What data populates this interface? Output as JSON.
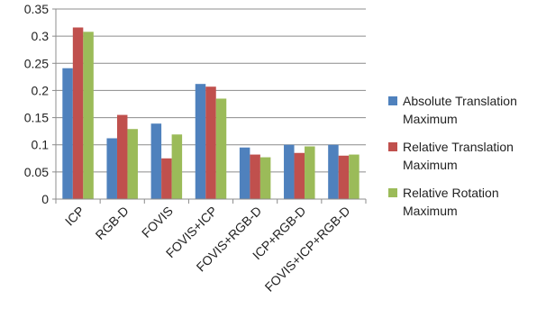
{
  "chart_data": {
    "type": "bar",
    "categories": [
      "ICP",
      "RGB-D",
      "FOVIS",
      "FOVIS+ICP",
      "FOVIS+RGB-D",
      "ICP+RGB-D",
      "FOVIS+ICP+RGB-D"
    ],
    "series": [
      {
        "name": "Absolute Translation Maximum",
        "legend_lines": [
          "Absolute Translation",
          "Maximum"
        ],
        "color": "#4f81bd",
        "values": [
          0.241,
          0.112,
          0.139,
          0.212,
          0.095,
          0.1,
          0.1
        ]
      },
      {
        "name": "Relative Translation Maximum",
        "legend_lines": [
          "Relative Translation",
          "Maximum"
        ],
        "color": "#c0504d",
        "values": [
          0.316,
          0.155,
          0.075,
          0.207,
          0.082,
          0.085,
          0.08
        ]
      },
      {
        "name": "Relative Rotation Maximum",
        "legend_lines": [
          "Relative Rotation",
          "Maximum"
        ],
        "color": "#9bbb59",
        "values": [
          0.308,
          0.129,
          0.119,
          0.185,
          0.077,
          0.097,
          0.082
        ]
      }
    ],
    "yticks": [
      "0",
      "0.05",
      "0.1",
      "0.15",
      "0.2",
      "0.25",
      "0.3",
      "0.35"
    ],
    "ylim": [
      0,
      0.35
    ],
    "grid": true,
    "legend_position": "right"
  }
}
